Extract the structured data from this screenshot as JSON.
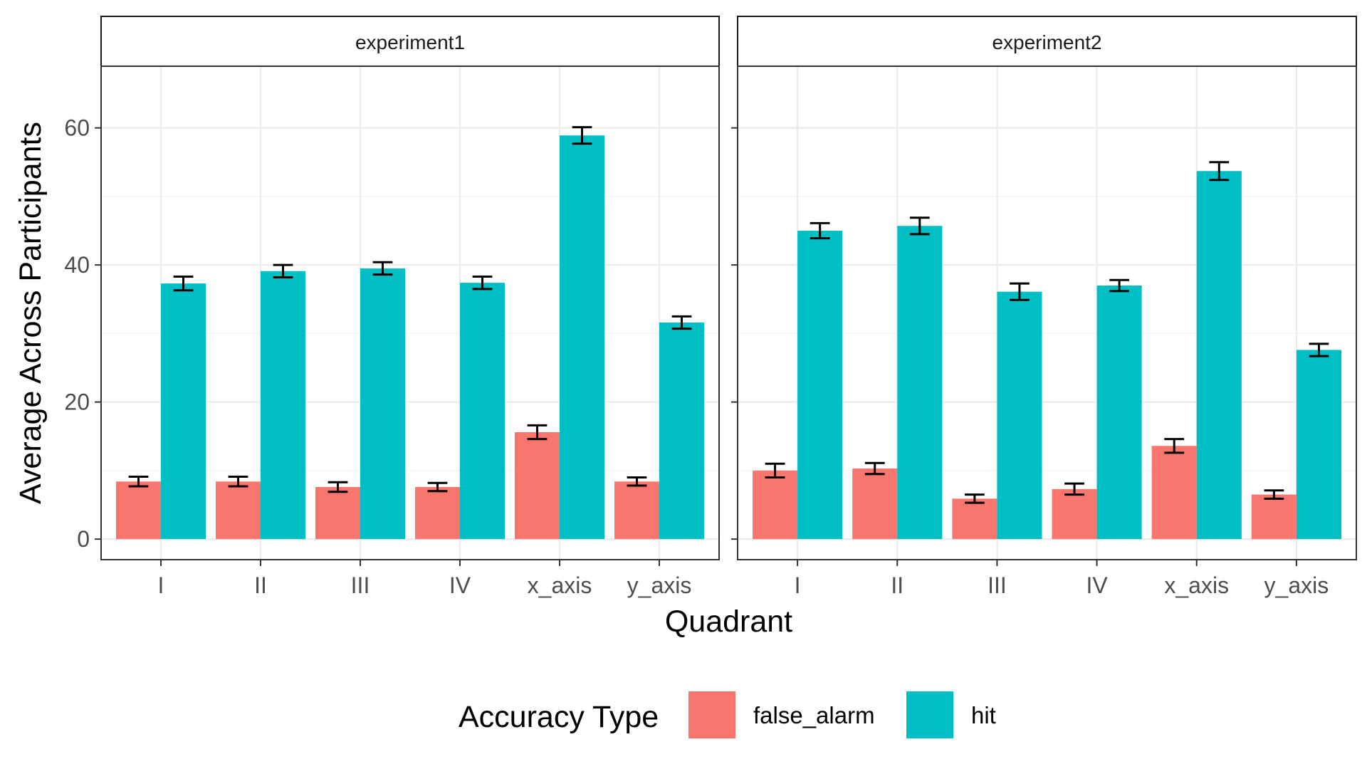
{
  "chart_data": {
    "type": "bar",
    "xlabel": "Quadrant",
    "ylabel": "Average Across Participants",
    "ylim": [
      -3,
      69
    ],
    "yticks": [
      0,
      20,
      40,
      60
    ],
    "grid": true,
    "legend": {
      "title": "Accuracy Type",
      "position": "bottom",
      "entries": [
        "false_alarm",
        "hit"
      ]
    },
    "colors": {
      "false_alarm": "#F8766D",
      "hit": "#00BFC4"
    },
    "categories": [
      "I",
      "II",
      "III",
      "IV",
      "x_axis",
      "y_axis"
    ],
    "panels": [
      {
        "label": "experiment1",
        "series": [
          {
            "name": "false_alarm",
            "values": [
              8.4,
              8.4,
              7.6,
              7.6,
              15.6,
              8.4
            ],
            "errors": [
              0.7,
              0.7,
              0.7,
              0.6,
              1.0,
              0.6
            ]
          },
          {
            "name": "hit",
            "values": [
              37.3,
              39.1,
              39.5,
              37.4,
              58.9,
              31.6
            ],
            "errors": [
              1.0,
              0.9,
              0.9,
              0.9,
              1.2,
              0.9
            ]
          }
        ]
      },
      {
        "label": "experiment2",
        "series": [
          {
            "name": "false_alarm",
            "values": [
              10.0,
              10.3,
              5.9,
              7.3,
              13.6,
              6.5
            ],
            "errors": [
              1.0,
              0.8,
              0.6,
              0.8,
              1.0,
              0.6
            ]
          },
          {
            "name": "hit",
            "values": [
              45.0,
              45.7,
              36.1,
              37.0,
              53.7,
              27.6
            ],
            "errors": [
              1.1,
              1.2,
              1.2,
              0.8,
              1.3,
              0.9
            ]
          }
        ]
      }
    ]
  }
}
